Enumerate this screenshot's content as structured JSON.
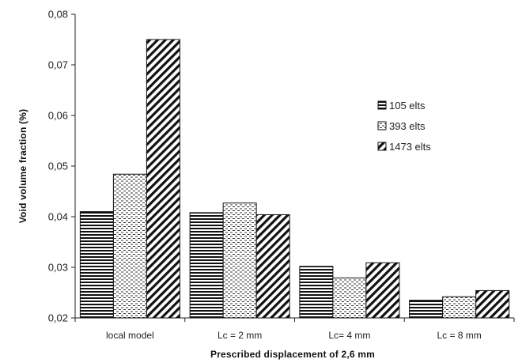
{
  "chart_data": {
    "type": "bar",
    "categories": [
      "local model",
      "Lc = 2 mm",
      "Lc= 4 mm",
      "Lc = 8 mm"
    ],
    "series": [
      {
        "name": "105 elts",
        "values": [
          0.041,
          0.0408,
          0.0302,
          0.0235
        ],
        "pattern": "horizontal"
      },
      {
        "name": "393 elts",
        "values": [
          0.0484,
          0.0427,
          0.0279,
          0.0242
        ],
        "pattern": "dotted"
      },
      {
        "name": "1473 elts",
        "values": [
          0.075,
          0.0404,
          0.0309,
          0.0254
        ],
        "pattern": "diagonal"
      }
    ],
    "xlabel": "Prescribed displacement of 2,6 mm",
    "ylabel": "Void volume fraction (%)",
    "ylim": [
      0.02,
      0.08
    ],
    "yticks": [
      "0,02",
      "0,03",
      "0,04",
      "0,05",
      "0,06",
      "0,07",
      "0,08"
    ],
    "grid": false,
    "legend_position": "top-right"
  }
}
